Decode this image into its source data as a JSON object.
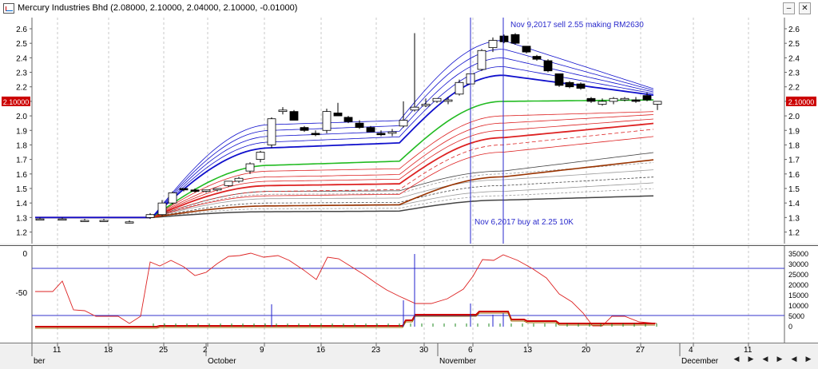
{
  "window": {
    "title": "Mercury Industries Bhd (2.08000, 2.10000, 2.04000, 2.10000, -0.01000)",
    "minimize_icon": "minimize-icon",
    "close_icon": "close-icon",
    "minimize_label": "–",
    "close_label": "✕"
  },
  "main_chart": {
    "y_ticks": [
      "2.6",
      "2.5",
      "2.4",
      "2.3",
      "2.2",
      "2.1",
      "2.0",
      "1.9",
      "1.8",
      "1.7",
      "1.6",
      "1.5",
      "1.4",
      "1.3",
      "1.2"
    ],
    "last_price_label": "2.10000",
    "annotation_sell": "Nov 9,2017 sell 2.55 making RM2630",
    "annotation_buy": "Nov 6,2017 buy at 2.25 10K",
    "colors": {
      "up_fill": "#ffffff",
      "down_fill": "#000000",
      "blue": "#1010cc",
      "green": "#22bb22",
      "red": "#dd1111",
      "darkred": "#993300",
      "gray": "#666666"
    }
  },
  "indicator": {
    "left_ticks": [
      "0",
      "-50"
    ],
    "right_ticks": [
      "35000",
      "30000",
      "25000",
      "20000",
      "15000",
      "10000",
      "5000",
      "0"
    ]
  },
  "x_axis": {
    "days": [
      "11",
      "18",
      "25",
      "2",
      "9",
      "16",
      "23",
      "30",
      "6",
      "13",
      "20",
      "27",
      "4",
      "11"
    ],
    "months": [
      "ber",
      "October",
      "November",
      "December"
    ]
  },
  "scroll": {
    "left_icon": "scroll-left-icon",
    "right_icon": "scroll-right-icon",
    "first_icon": "scroll-first-icon",
    "last_icon": "scroll-last-icon",
    "glyphs": [
      "◀",
      "▶",
      "◀",
      "▶",
      "◀",
      "▶"
    ]
  }
}
